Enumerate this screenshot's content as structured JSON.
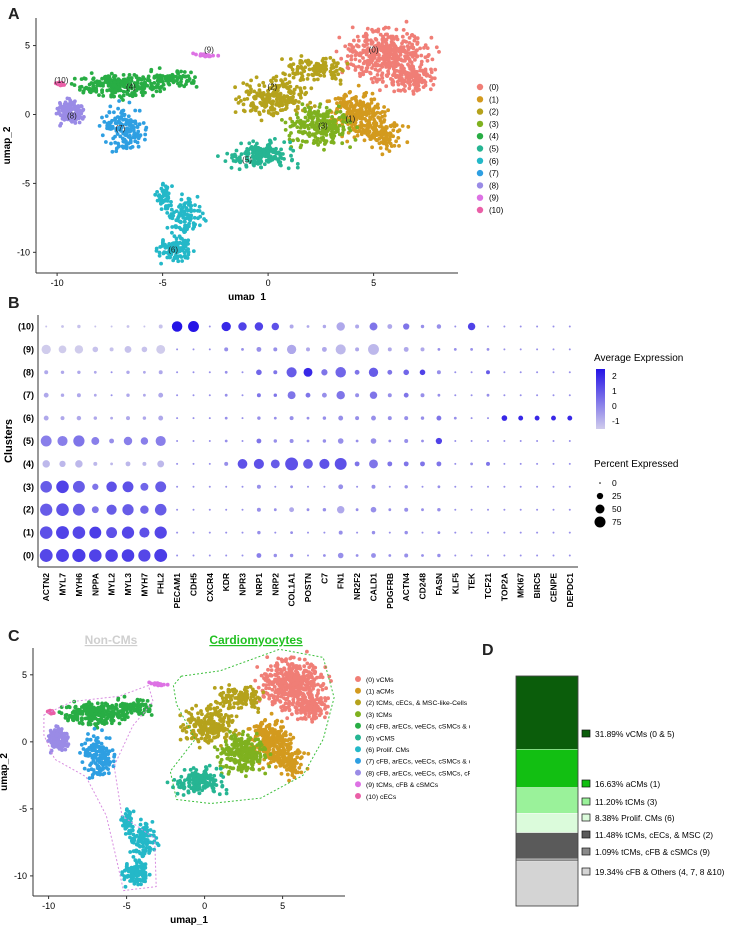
{
  "panels": {
    "a": "A",
    "b": "B",
    "c": "C",
    "d": "D"
  },
  "colors": {
    "c0": "#f07e76",
    "c1": "#d39a1e",
    "c2": "#b5a21c",
    "c3": "#7fb11f",
    "c4": "#28ad44",
    "c5": "#26b593",
    "c6": "#24b8c8",
    "c7": "#2e9fe2",
    "c8": "#9a8be6",
    "c9": "#dd72e4",
    "c10": "#ea5fa7"
  },
  "chart_data": [
    {
      "type": "scatter",
      "title": "",
      "xlabel": "umap_1",
      "ylabel": "umap_2",
      "xlim": [
        -11,
        9
      ],
      "ylim": [
        -11.5,
        7
      ],
      "xticks": [
        -10,
        -5,
        0,
        5
      ],
      "yticks": [
        -10,
        -5,
        0,
        5
      ],
      "legend": [
        "(0)",
        "(1)",
        "(2)",
        "(3)",
        "(4)",
        "(5)",
        "(6)",
        "(7)",
        "(8)",
        "(9)",
        "(10)"
      ],
      "cluster_labels": [
        {
          "label": "(0)",
          "x": 5,
          "y": 4.5
        },
        {
          "label": "(1)",
          "x": 3.9,
          "y": -0.5
        },
        {
          "label": "(2)",
          "x": 0.2,
          "y": 1.8
        },
        {
          "label": "(3)",
          "x": 2.6,
          "y": -1.0
        },
        {
          "label": "(4)",
          "x": -6.5,
          "y": 1.8
        },
        {
          "label": "(5)",
          "x": -1.0,
          "y": -3.5
        },
        {
          "label": "(6)",
          "x": -4.5,
          "y": -10.0
        },
        {
          "label": "(7)",
          "x": -7.0,
          "y": -1.2
        },
        {
          "label": "(8)",
          "x": -9.3,
          "y": -0.3
        },
        {
          "label": "(9)",
          "x": -2.8,
          "y": 4.5
        },
        {
          "label": "(10)",
          "x": -9.8,
          "y": 2.3
        }
      ]
    },
    {
      "type": "dot",
      "xlabel": "",
      "ylabel": "Clusters",
      "genes": [
        "ACTN2",
        "MYL7",
        "MYH6",
        "NPPA",
        "MYL2",
        "MYL3",
        "MYH7",
        "FHL2",
        "PECAM1",
        "CDH5",
        "CXCR4",
        "KDR",
        "NPR3",
        "NRP1",
        "NRP2",
        "COL1A1",
        "POSTN",
        "C7",
        "FN1",
        "NR2F2",
        "CALD1",
        "PDGFRB",
        "ACTN4",
        "CD248",
        "FASN",
        "KLF5",
        "TEK",
        "TCF21",
        "TOP2A",
        "MKI67",
        "BIRC5",
        "CENPE",
        "DEPDC1"
      ],
      "clusters": [
        "(10)",
        "(9)",
        "(8)",
        "(7)",
        "(6)",
        "(5)",
        "(4)",
        "(3)",
        "(2)",
        "(1)",
        "(0)"
      ],
      "color_legend_title": "Average Expression",
      "color_ticks": [
        "2",
        "1",
        "0",
        "-1"
      ],
      "size_legend_title": "Percent Expressed",
      "size_ticks": [
        "0",
        "25",
        "50",
        "75"
      ],
      "rows": [
        {
          "cluster": "(10)",
          "size": [
            1,
            2,
            3,
            1,
            1,
            2,
            1,
            4,
            28,
            30,
            1,
            22,
            18,
            18,
            14,
            4,
            2,
            3,
            18,
            4,
            16,
            6,
            10,
            3,
            5,
            1,
            14,
            1,
            1,
            1,
            1,
            1,
            1
          ],
          "expr": [
            -1,
            -1,
            -1,
            -1,
            -1,
            -1,
            -1,
            -1,
            2.4,
            2.4,
            0,
            2,
            1.5,
            1.5,
            1.2,
            -0.5,
            -0.5,
            -0.5,
            -0.5,
            -0.5,
            0.5,
            -0.5,
            0.5,
            0,
            0,
            0,
            1.5,
            0,
            0,
            0,
            0,
            0,
            0
          ]
        },
        {
          "cluster": "(9)",
          "size": [
            22,
            15,
            18,
            8,
            4,
            12,
            8,
            20,
            1,
            1,
            1,
            4,
            2,
            6,
            4,
            22,
            4,
            6,
            26,
            4,
            30,
            4,
            6,
            4,
            2,
            2,
            2,
            2,
            1,
            1,
            1,
            1,
            1
          ],
          "expr": [
            -1.2,
            -1.2,
            -1.2,
            -1,
            -1,
            -1,
            -1,
            -1.2,
            0,
            0,
            0,
            0,
            0,
            0,
            0,
            -0.5,
            -0.5,
            -0.5,
            -0.8,
            -0.5,
            -0.8,
            -0.5,
            -0.5,
            -0.5,
            0,
            0,
            0,
            0,
            0,
            0,
            0,
            0,
            0
          ]
        },
        {
          "cluster": "(8)",
          "size": [
            4,
            3,
            3,
            2,
            1,
            3,
            2,
            4,
            1,
            1,
            1,
            2,
            1,
            8,
            4,
            26,
            20,
            10,
            28,
            6,
            22,
            6,
            8,
            8,
            4,
            1,
            1,
            4,
            1,
            1,
            1,
            1,
            1
          ],
          "expr": [
            -0.5,
            -0.5,
            -0.5,
            -0.5,
            0,
            -0.5,
            -0.5,
            -0.5,
            0,
            0,
            0,
            0,
            0,
            0.8,
            0.5,
            1,
            2,
            0.5,
            0.8,
            0.5,
            1,
            0.5,
            0.8,
            1.5,
            0,
            0,
            0,
            1,
            0,
            0,
            0,
            0,
            0
          ]
        },
        {
          "cluster": "(7)",
          "size": [
            6,
            3,
            4,
            2,
            1,
            3,
            2,
            6,
            1,
            1,
            1,
            2,
            1,
            4,
            3,
            16,
            6,
            6,
            18,
            4,
            14,
            4,
            6,
            4,
            2,
            1,
            1,
            2,
            1,
            1,
            1,
            1,
            1
          ],
          "expr": [
            -0.5,
            -0.5,
            -0.5,
            -0.5,
            0,
            -0.5,
            -0.5,
            -0.5,
            0,
            0,
            0,
            0,
            0,
            0.5,
            0.5,
            0.5,
            0.5,
            0,
            0.5,
            0,
            0.5,
            0,
            0.5,
            0,
            0,
            0,
            0,
            0,
            0,
            0,
            0,
            0,
            0
          ]
        },
        {
          "cluster": "(6)",
          "size": [
            6,
            4,
            5,
            3,
            2,
            4,
            3,
            6,
            1,
            1,
            1,
            2,
            1,
            3,
            2,
            4,
            2,
            3,
            6,
            4,
            6,
            4,
            4,
            3,
            6,
            2,
            1,
            1,
            8,
            6,
            6,
            6,
            6
          ],
          "expr": [
            -0.5,
            -0.5,
            -0.5,
            -0.5,
            -0.5,
            -0.5,
            -0.5,
            -0.5,
            0,
            0,
            0,
            0,
            0,
            0,
            0,
            0,
            0,
            0,
            0,
            0,
            0,
            0,
            0,
            0,
            0.5,
            0,
            0,
            0,
            2,
            2,
            2,
            2,
            2
          ]
        },
        {
          "cluster": "(5)",
          "size": [
            30,
            26,
            32,
            16,
            6,
            18,
            14,
            26,
            1,
            1,
            1,
            2,
            1,
            6,
            3,
            4,
            2,
            3,
            8,
            2,
            8,
            2,
            4,
            2,
            10,
            1,
            1,
            1,
            1,
            1,
            1,
            1,
            1
          ],
          "expr": [
            0.3,
            0.3,
            0.5,
            0.3,
            0,
            0.3,
            0.3,
            0.3,
            0,
            0,
            0,
            0,
            0,
            0.5,
            0,
            0,
            0,
            0,
            0,
            0,
            0,
            0,
            0,
            0,
            1.5,
            0,
            0,
            0,
            0,
            0,
            0,
            0,
            0
          ]
        },
        {
          "cluster": "(4)",
          "size": [
            14,
            10,
            14,
            4,
            2,
            6,
            4,
            12,
            1,
            1,
            1,
            4,
            24,
            26,
            20,
            42,
            24,
            26,
            36,
            6,
            20,
            6,
            6,
            6,
            6,
            1,
            2,
            4,
            1,
            1,
            1,
            1,
            1
          ],
          "expr": [
            -0.8,
            -0.8,
            -0.8,
            -0.8,
            -0.8,
            -0.8,
            -0.8,
            -0.8,
            0,
            0,
            0,
            0,
            1.2,
            1.2,
            1,
            1.2,
            1,
            1.2,
            1.2,
            0.5,
            0.5,
            0.5,
            0.5,
            0.5,
            0.5,
            0,
            0,
            0.5,
            0,
            0,
            0,
            0,
            0
          ]
        },
        {
          "cluster": "(3)",
          "size": [
            34,
            40,
            36,
            10,
            28,
            30,
            16,
            30,
            1,
            1,
            1,
            1,
            1,
            4,
            1,
            2,
            1,
            1,
            6,
            1,
            4,
            1,
            3,
            1,
            2,
            1,
            1,
            1,
            1,
            1,
            1,
            1,
            1
          ],
          "expr": [
            1,
            1.5,
            1,
            0.5,
            1.2,
            1.2,
            0.8,
            1,
            0,
            0,
            0,
            0,
            0,
            0,
            0,
            0,
            0,
            0,
            0,
            0,
            0,
            0,
            0,
            0,
            0,
            0,
            0,
            0,
            0,
            0,
            0,
            0,
            0
          ]
        },
        {
          "cluster": "(2)",
          "size": [
            38,
            40,
            36,
            12,
            26,
            32,
            18,
            34,
            1,
            1,
            1,
            1,
            1,
            4,
            2,
            6,
            2,
            3,
            14,
            2,
            8,
            2,
            4,
            2,
            3,
            1,
            1,
            1,
            1,
            1,
            1,
            1,
            1
          ],
          "expr": [
            1,
            1.2,
            1,
            0.5,
            1,
            1,
            0.8,
            1,
            0,
            0,
            0,
            0,
            0,
            0,
            0,
            -0.5,
            0,
            0,
            -0.5,
            0,
            0,
            0,
            0,
            0,
            0,
            0,
            0,
            0,
            0,
            0,
            0,
            0,
            0
          ]
        },
        {
          "cluster": "(1)",
          "size": [
            40,
            42,
            40,
            36,
            30,
            38,
            26,
            38,
            1,
            1,
            1,
            1,
            1,
            3,
            1,
            2,
            1,
            1,
            4,
            1,
            3,
            1,
            3,
            1,
            2,
            1,
            1,
            1,
            1,
            1,
            1,
            1,
            1
          ],
          "expr": [
            1.2,
            1.5,
            1.4,
            1.6,
            1.2,
            1.4,
            1.2,
            1.4,
            0,
            0,
            0,
            0,
            0,
            0,
            0,
            0,
            0,
            0,
            0,
            0,
            0,
            0,
            0,
            0,
            0,
            0,
            0,
            0,
            0,
            0,
            0,
            0,
            0
          ]
        },
        {
          "cluster": "(0)",
          "size": [
            42,
            42,
            44,
            40,
            40,
            40,
            38,
            42,
            1,
            1,
            1,
            1,
            1,
            6,
            3,
            3,
            1,
            2,
            8,
            2,
            6,
            2,
            4,
            2,
            3,
            1,
            1,
            1,
            1,
            1,
            1,
            1,
            1
          ],
          "expr": [
            1.4,
            1.5,
            1.6,
            1.5,
            1.5,
            1.6,
            1.4,
            1.6,
            0,
            0,
            0,
            0,
            0,
            0.3,
            0,
            0,
            0,
            0,
            0,
            0,
            0,
            0,
            0,
            0,
            0,
            0,
            0,
            0,
            0,
            0,
            0,
            0,
            0
          ]
        }
      ]
    },
    {
      "type": "scatter",
      "title": "",
      "xlabel": "umap_1",
      "ylabel": "umap_2",
      "xlim": [
        -11,
        9
      ],
      "ylim": [
        -11.5,
        7
      ],
      "xticks": [
        -10,
        -5,
        0,
        5
      ],
      "yticks": [
        -10,
        -5,
        0,
        5
      ],
      "group_labels": [
        "Non-CMs",
        "Cardiomyocytes"
      ],
      "legend": [
        "(0) vCMs",
        "(1) aCMs",
        "(2) tCMs, cECs, & MSC-like-Cells",
        "(3) tCMs",
        "(4) cFB, arECs, veECs, cSMCs & cPeri",
        "(5) vCMS",
        "(6) Prolif. CMs",
        "(7) cFB, arECs, veECs, cSMCs & cPeri",
        "(8) cFB, arECs, veECs, cSMCs, cPeri & Epi",
        "(9) tCMs, cFB & cSMCs",
        "(10) cECs"
      ]
    },
    {
      "type": "bar",
      "stacked": true,
      "categories": [
        "vCMs (0 & 5)",
        "aCMs (1)",
        "tCMs (3)",
        "Prolif. CMs (6)",
        "tCMs, cECs, & MSC (2)",
        "tCMs, cFB & cSMCs (9)",
        "cFB & Others (4, 7, 8 &10)"
      ],
      "values": [
        31.89,
        16.63,
        11.2,
        8.38,
        11.48,
        1.09,
        19.34
      ],
      "labels": [
        "31.89%",
        "16.63%",
        "11.20%",
        "8.38%",
        "11.48%",
        "1.09%",
        "19.34%"
      ],
      "label_texts": [
        "vCMs (0 & 5)",
        "aCMs (1)",
        "tCMs (3)",
        "Prolif. CMs (6)",
        "tCMs, cECs, & MSC (2)",
        "tCMs, cFB & cSMCs (9)",
        "cFB & Others (4, 7, 8 &10)"
      ],
      "colors": [
        "#0b5d0b",
        "#12bf12",
        "#9af29a",
        "#dbfbdb",
        "#5a5a5a",
        "#8a8a8a",
        "#d4d4d4"
      ]
    }
  ]
}
